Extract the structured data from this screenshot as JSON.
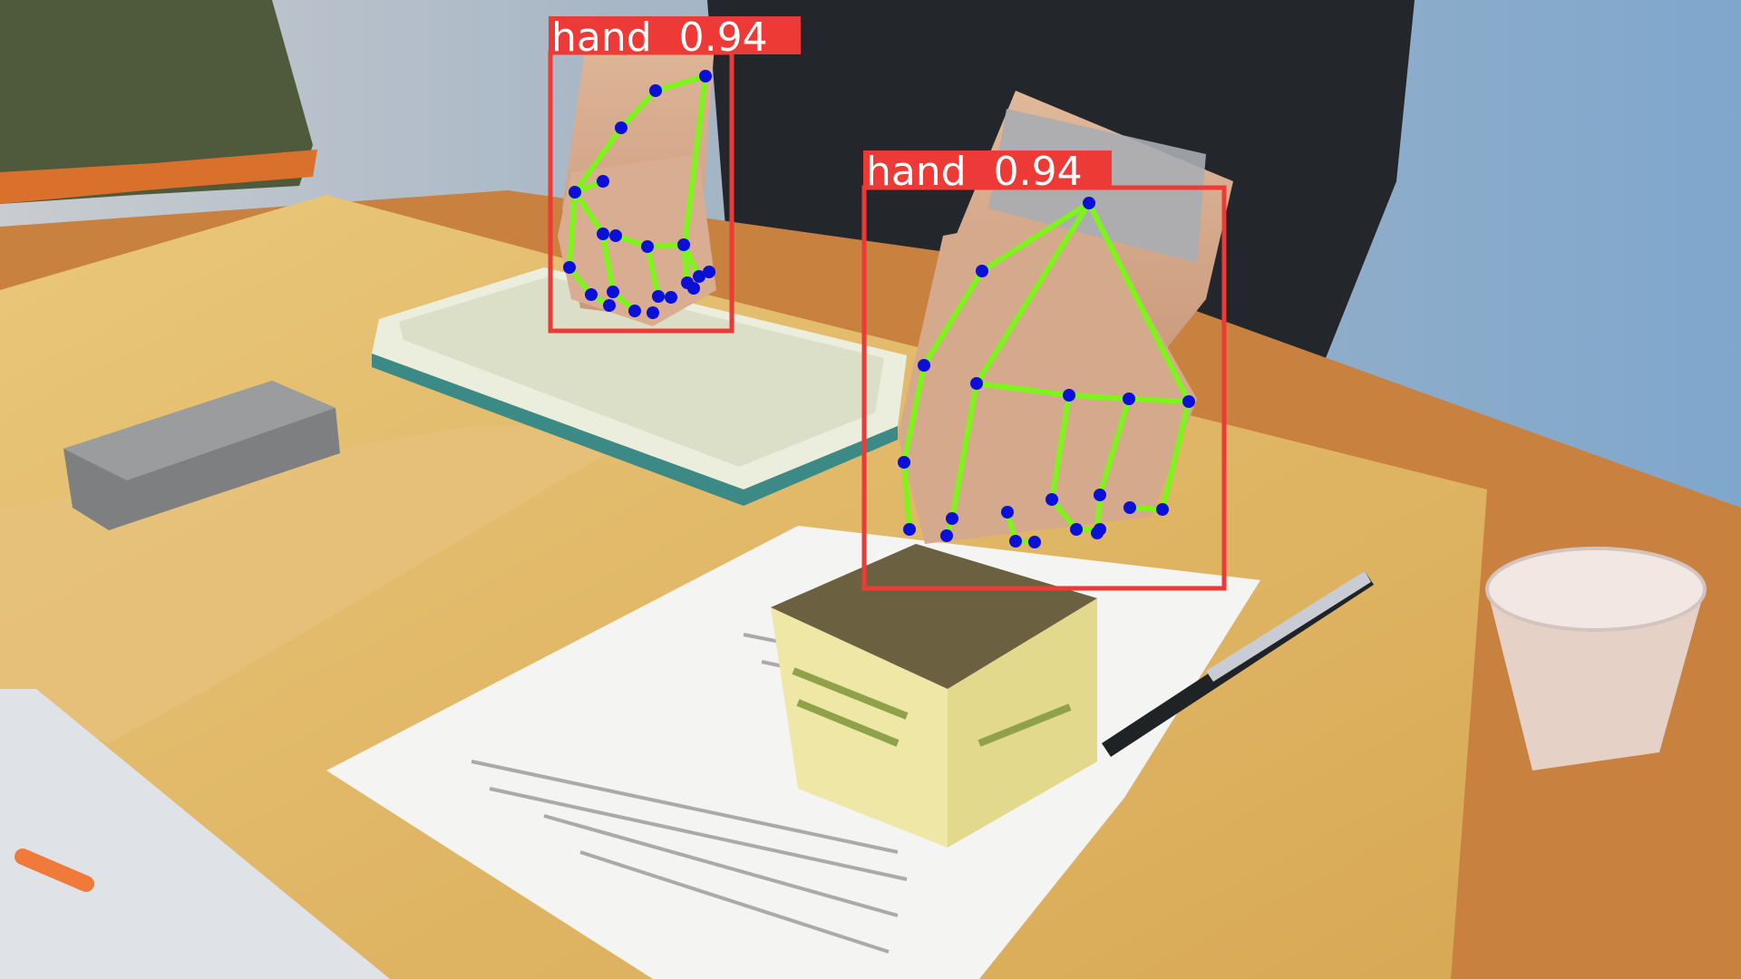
{
  "detections": [
    {
      "id": "hand-left",
      "label": "hand",
      "score": "0.94",
      "color": "#ee3a36"
    },
    {
      "id": "hand-right",
      "label": "hand",
      "score": "0.94",
      "color": "#ee3a36"
    }
  ],
  "skeleton_color": "#7df51a",
  "keypoint_color": "#0a10d8"
}
